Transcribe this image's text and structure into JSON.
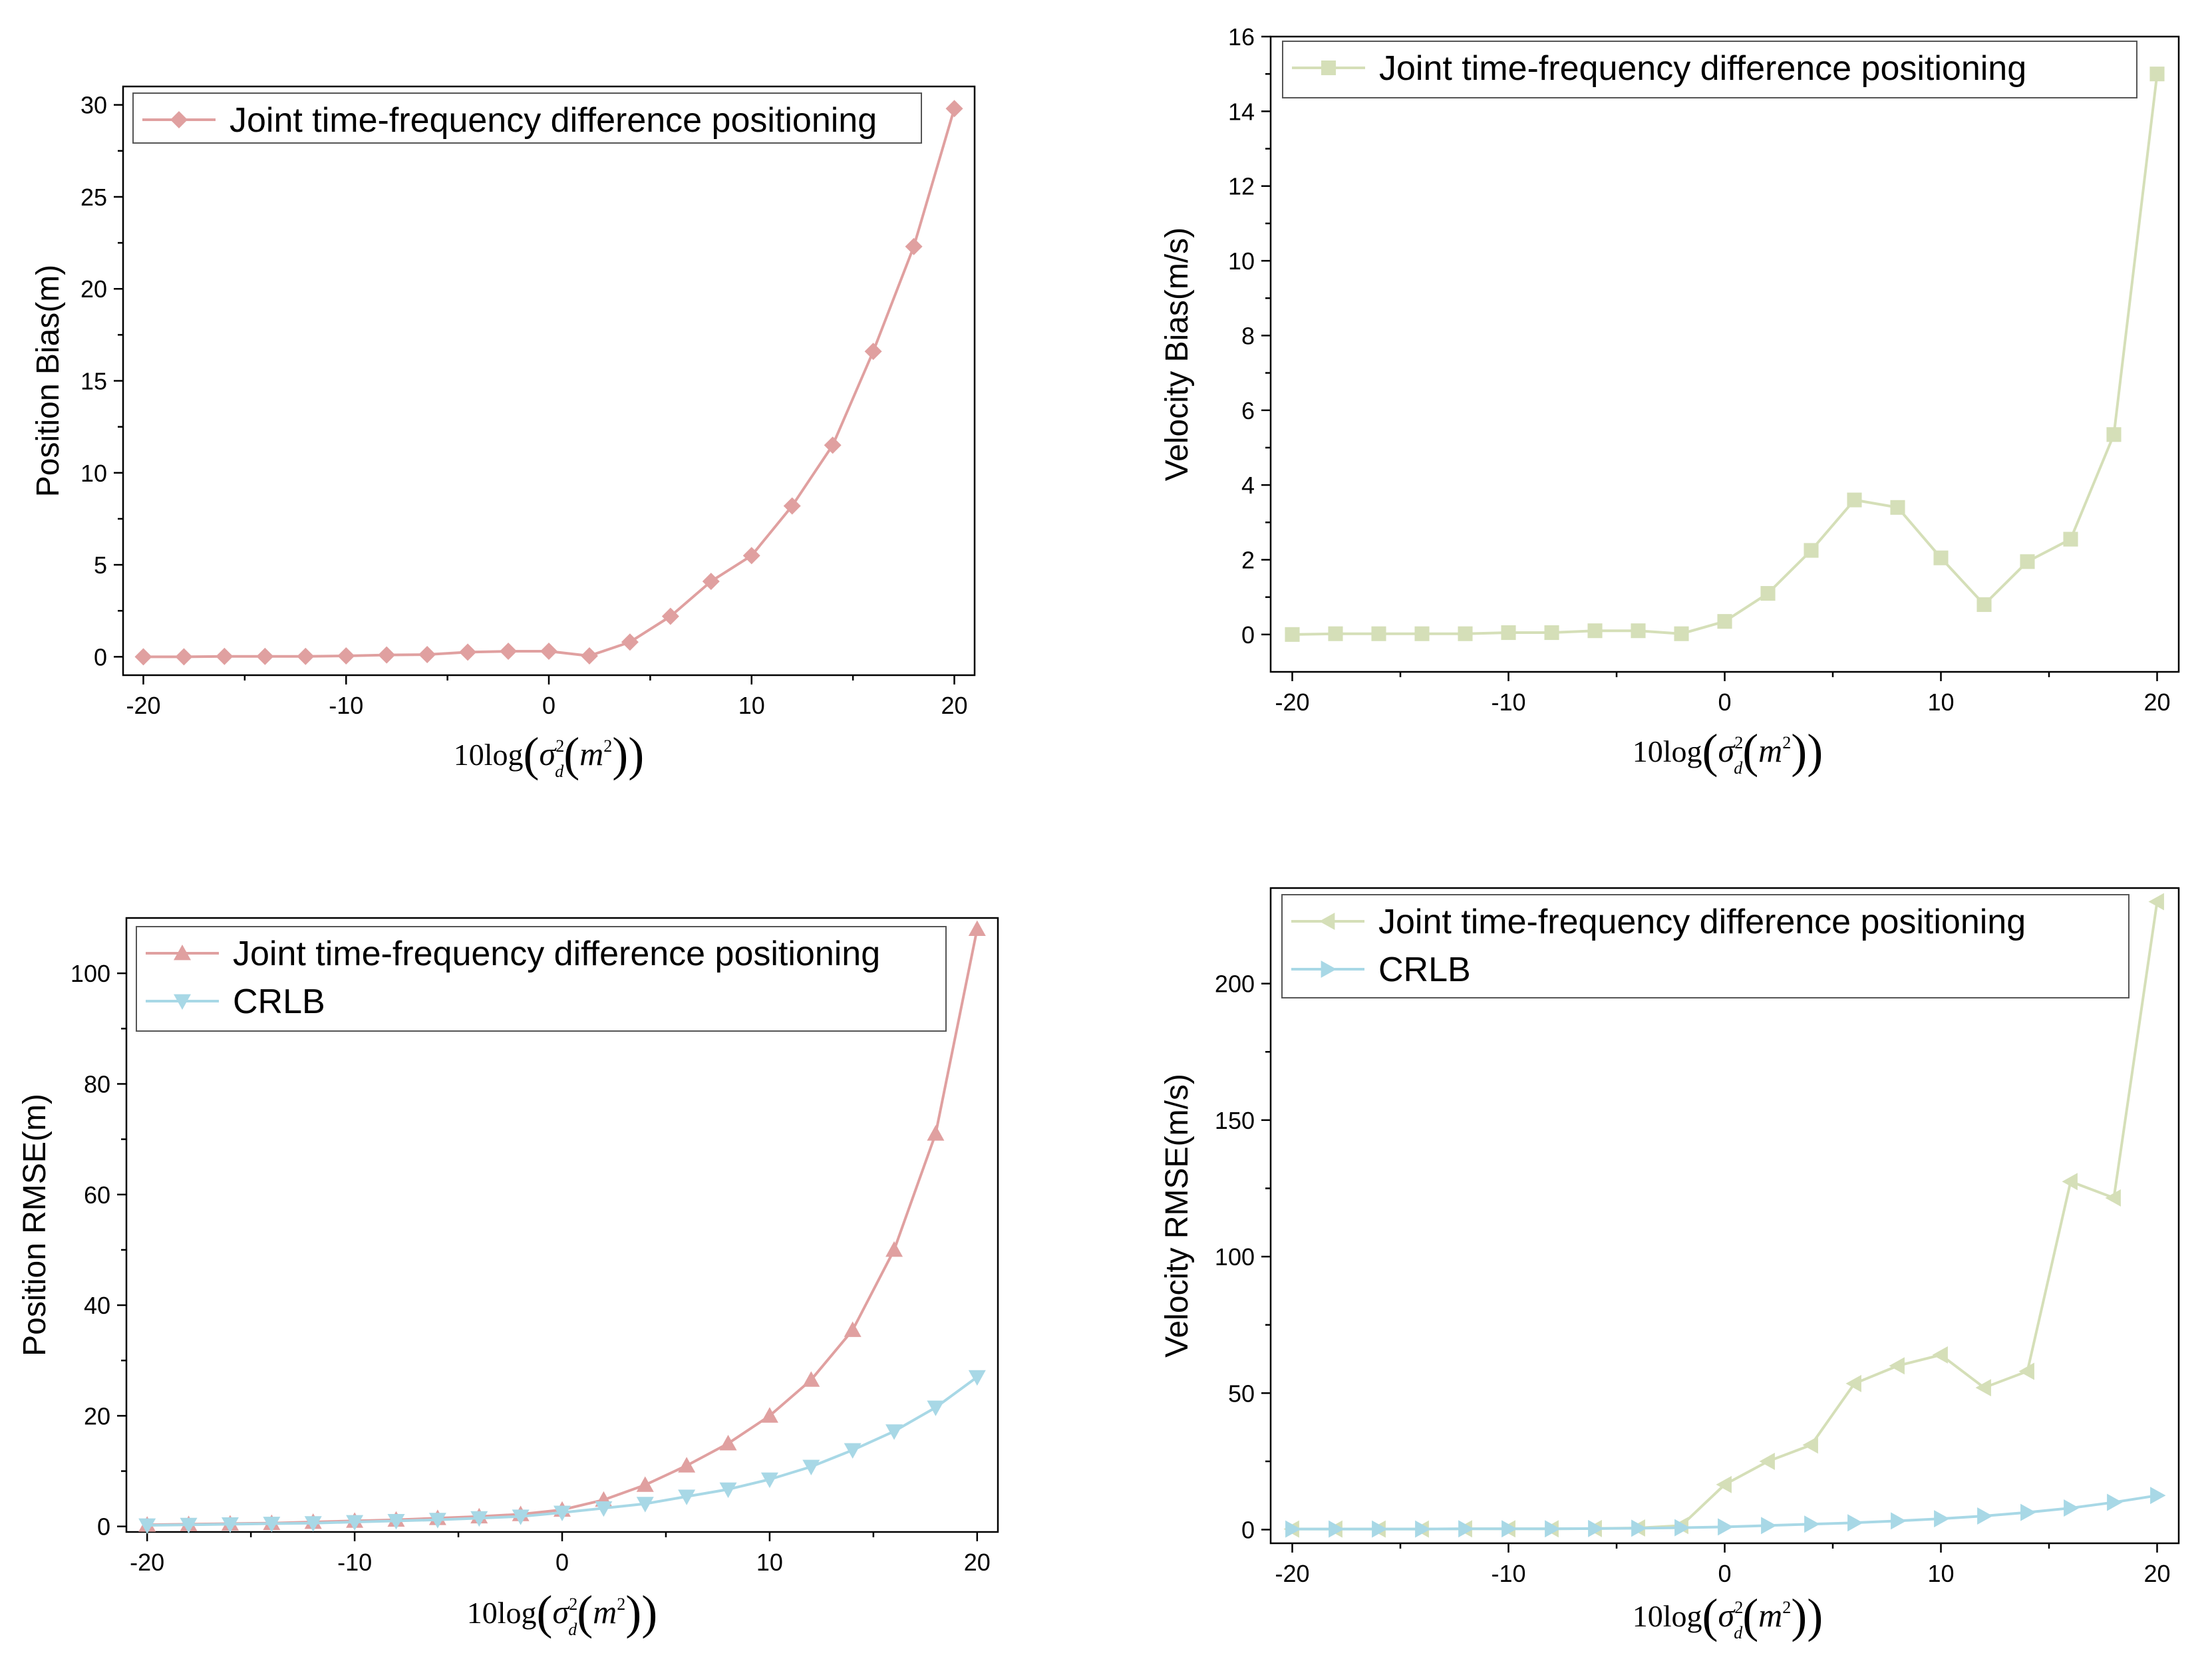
{
  "xlabel": {
    "prefix": "10log",
    "sigma": "σ",
    "sub": "d",
    "sup": "2",
    "m": "m",
    "msup": "2"
  },
  "chart_data": [
    {
      "id": "position-bias",
      "type": "line",
      "ylabel": "Position Bias(m)",
      "xlim": [
        -21,
        21
      ],
      "ylim": [
        -1,
        31
      ],
      "xticks": [
        -20,
        -10,
        0,
        10,
        20
      ],
      "yticks": [
        0,
        5,
        10,
        15,
        20,
        25,
        30
      ],
      "x": [
        -20,
        -18,
        -16,
        -14,
        -12,
        -10,
        -8,
        -6,
        -4,
        -2,
        0,
        2,
        4,
        6,
        8,
        10,
        12,
        14,
        16,
        18,
        20
      ],
      "series": [
        {
          "name": "Joint time-frequency difference positioning",
          "marker": "diamond",
          "color": "#e0a0a0",
          "values": [
            0,
            0,
            0.02,
            0.02,
            0.02,
            0.05,
            0.1,
            0.12,
            0.25,
            0.3,
            0.3,
            0.05,
            0.8,
            2.2,
            4.1,
            5.5,
            8.2,
            11.5,
            16.6,
            22.3,
            29.8
          ]
        }
      ]
    },
    {
      "id": "velocity-bias",
      "type": "line",
      "ylabel": "Velocity Bias(m/s)",
      "xlim": [
        -21,
        21
      ],
      "ylim": [
        -1,
        16
      ],
      "xticks": [
        -20,
        -10,
        0,
        10,
        20
      ],
      "yticks": [
        0,
        2,
        4,
        6,
        8,
        10,
        12,
        14,
        16
      ],
      "x": [
        -20,
        -18,
        -16,
        -14,
        -12,
        -10,
        -8,
        -6,
        -4,
        -2,
        0,
        2,
        4,
        6,
        8,
        10,
        12,
        14,
        16,
        18,
        20
      ],
      "series": [
        {
          "name": "Joint time-frequency difference positioning",
          "marker": "square",
          "color": "#d5dfb8",
          "values": [
            0,
            0.02,
            0.02,
            0.02,
            0.02,
            0.05,
            0.05,
            0.1,
            0.1,
            0.02,
            0.35,
            1.1,
            2.25,
            3.6,
            3.4,
            2.05,
            0.8,
            1.95,
            2.55,
            5.35,
            15
          ]
        }
      ]
    },
    {
      "id": "position-rmse",
      "type": "line",
      "ylabel": "Position RMSE(m)",
      "xlim": [
        -21,
        21
      ],
      "ylim": [
        -1,
        110
      ],
      "xticks": [
        -20,
        -10,
        0,
        10,
        20
      ],
      "yticks": [
        0,
        20,
        40,
        60,
        80,
        100
      ],
      "x": [
        -20,
        -18,
        -16,
        -14,
        -12,
        -10,
        -8,
        -6,
        -4,
        -2,
        0,
        2,
        4,
        6,
        8,
        10,
        12,
        14,
        16,
        18,
        20
      ],
      "series": [
        {
          "name": "Joint time-frequency difference positioning",
          "marker": "triangle-up",
          "color": "#e0a0a0",
          "values": [
            0.3,
            0.4,
            0.5,
            0.6,
            0.8,
            1.0,
            1.2,
            1.5,
            1.8,
            2.2,
            3.0,
            4.8,
            7.5,
            11,
            15,
            20,
            26.5,
            35.5,
            50,
            71,
            108
          ]
        },
        {
          "name": "CRLB",
          "marker": "triangle-down",
          "color": "#a8d8e6",
          "values": [
            0.2,
            0.3,
            0.4,
            0.5,
            0.6,
            0.8,
            1.0,
            1.2,
            1.5,
            1.8,
            2.5,
            3.3,
            4.1,
            5.4,
            6.7,
            8.5,
            10.8,
            13.8,
            17.2,
            21.5,
            27
          ]
        }
      ]
    },
    {
      "id": "velocity-rmse",
      "type": "line",
      "ylabel": "Velocity RMSE(m/s)",
      "xlim": [
        -21,
        21
      ],
      "ylim": [
        -5,
        235
      ],
      "xticks": [
        -20,
        -10,
        0,
        10,
        20
      ],
      "yticks": [
        0,
        50,
        100,
        150,
        200
      ],
      "x": [
        -20,
        -18,
        -16,
        -14,
        -12,
        -10,
        -8,
        -6,
        -4,
        -2,
        0,
        2,
        4,
        6,
        8,
        10,
        12,
        14,
        16,
        18,
        20
      ],
      "series": [
        {
          "name": "Joint time-frequency difference positioning",
          "marker": "triangle-left",
          "color": "#d5dfb8",
          "values": [
            0.2,
            0.2,
            0.2,
            0.2,
            0.3,
            0.3,
            0.3,
            0.4,
            0.6,
            1.5,
            16.5,
            25,
            31,
            53.5,
            60,
            64,
            52,
            58,
            127.5,
            121.5,
            230
          ]
        },
        {
          "name": "CRLB",
          "marker": "triangle-right",
          "color": "#a8d8e6",
          "values": [
            0.2,
            0.2,
            0.2,
            0.2,
            0.3,
            0.3,
            0.3,
            0.4,
            0.5,
            0.7,
            1.0,
            1.5,
            2.0,
            2.5,
            3.2,
            4.0,
            5.0,
            6.3,
            7.9,
            10,
            12.5
          ]
        }
      ]
    }
  ]
}
